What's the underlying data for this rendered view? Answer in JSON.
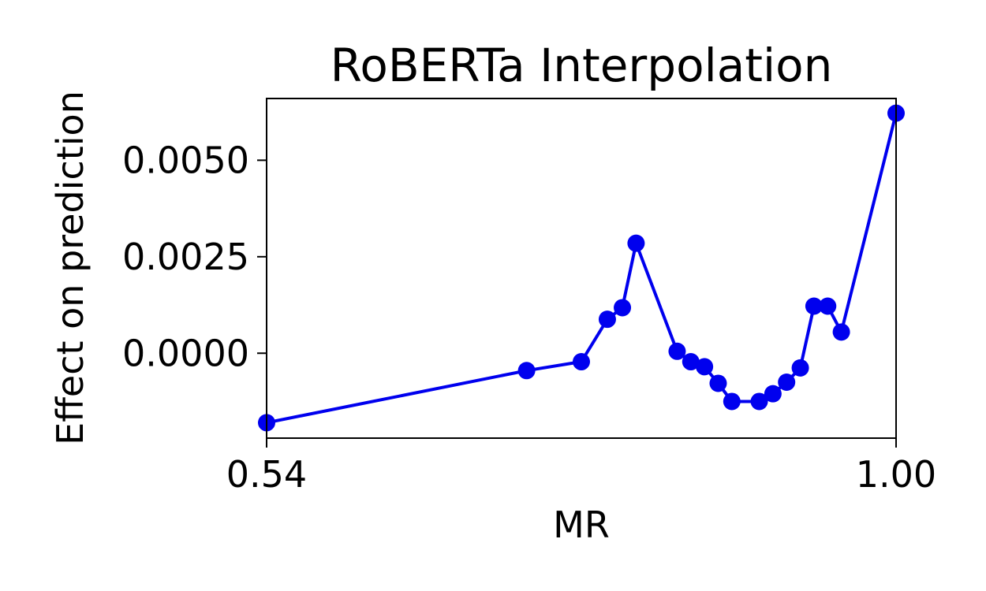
{
  "chart_data": {
    "type": "line",
    "title": "RoBERTa Interpolation",
    "xlabel": "MR",
    "ylabel": "Effect on prediction",
    "xlim": [
      0.54,
      1.0
    ],
    "ylim": [
      -0.0022,
      0.0066
    ],
    "xticks": [
      0.54,
      1.0
    ],
    "xtick_labels": [
      "0.54",
      "1.00"
    ],
    "yticks": [
      0.0,
      0.0025,
      0.005
    ],
    "ytick_labels": [
      "0.0000",
      "0.0025",
      "0.0050"
    ],
    "grid": false,
    "color": "#0000ee",
    "series": [
      {
        "x": [
          0.54,
          0.73,
          0.77,
          0.789,
          0.8,
          0.81,
          0.84,
          0.85,
          0.86,
          0.87,
          0.88,
          0.9,
          0.91,
          0.92,
          0.93,
          0.94,
          0.95,
          0.96,
          1.0
        ],
        "y": [
          -0.0018,
          -0.00045,
          -0.00022,
          0.00088,
          0.00118,
          0.00285,
          5e-05,
          -0.00022,
          -0.00035,
          -0.00078,
          -0.00125,
          -0.00125,
          -0.00105,
          -0.00075,
          -0.00038,
          0.00122,
          0.00122,
          0.00055,
          0.00622
        ]
      }
    ]
  }
}
